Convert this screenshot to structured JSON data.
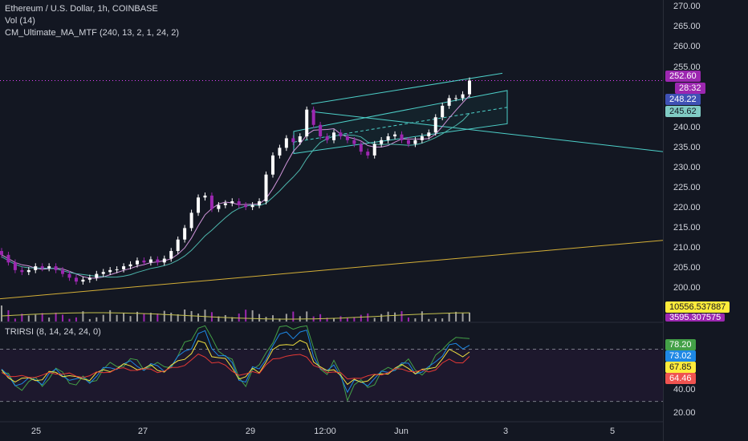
{
  "header": {
    "symbol_line": "Ethereum / U.S. Dollar, 1h, COINBASE",
    "volume_line": "Vol (14)",
    "ma_line": "CM_Ultimate_MA_MTF (240, 13, 2, 1, 24, 2)",
    "rsi_line": "TRIRSI (8, 14, 24, 24, 0)"
  },
  "colors": {
    "background": "#131722",
    "up_candle": "#ffffff",
    "down_candle": "#9c27b0",
    "ma_fast": "#4db6ac",
    "ma_slow": "#c6c24f",
    "long_trend": "#d4af37",
    "channel": "#4dd0c9",
    "rsi_fast": "#43a047",
    "rsi_mid": "#1e88e5",
    "rsi_slow": "#f0e040",
    "rsi_red": "#e53935",
    "price_line": "#e040fb"
  },
  "price_axis": {
    "ticks": [
      "270.00",
      "265.00",
      "260.00",
      "255.00",
      "240.00",
      "235.00",
      "230.00",
      "225.00",
      "220.00",
      "215.00",
      "210.00",
      "205.00",
      "200.00"
    ],
    "rsi_ticks": [
      "40.00",
      "20.00"
    ]
  },
  "badges": {
    "last_price": "252.60",
    "countdown": "28:32",
    "ma_value_1": "248.22",
    "ma_value_2": "245.62",
    "volume_ma": "10556.537887",
    "volume": "3595.307575",
    "rsi_1": "78.20",
    "rsi_2": "73.02",
    "rsi_3": "67.85",
    "rsi_4": "64.46"
  },
  "time_axis": [
    "25",
    "27",
    "29",
    "12:00",
    "Jun",
    "3",
    "5"
  ],
  "chart_data": [
    {
      "type": "candlestick",
      "title": "Ethereum / U.S. Dollar, 1h, COINBASE",
      "ylim": [
        195,
        272
      ],
      "x_labels": [
        "25",
        "27",
        "29",
        "12:00",
        "Jun",
        "3",
        "5"
      ],
      "close_path_points": [
        [
          0,
          207
        ],
        [
          2,
          205
        ],
        [
          4,
          203
        ],
        [
          6,
          202.5
        ],
        [
          8,
          203
        ],
        [
          10,
          204
        ],
        [
          12,
          203.5
        ],
        [
          14,
          204
        ],
        [
          16,
          203
        ],
        [
          18,
          202
        ],
        [
          20,
          201
        ],
        [
          22,
          200
        ],
        [
          24,
          200.5
        ],
        [
          26,
          201
        ],
        [
          28,
          202
        ],
        [
          30,
          202.5
        ],
        [
          32,
          203
        ],
        [
          34,
          203.2
        ],
        [
          36,
          204
        ],
        [
          38,
          204.5
        ],
        [
          40,
          205.5
        ],
        [
          42,
          205
        ],
        [
          44,
          205.8
        ],
        [
          46,
          205
        ],
        [
          48,
          206
        ],
        [
          50,
          208
        ],
        [
          52,
          211
        ],
        [
          54,
          214
        ],
        [
          56,
          218
        ],
        [
          58,
          222
        ],
        [
          60,
          222.5
        ],
        [
          62,
          219
        ],
        [
          64,
          220
        ],
        [
          66,
          220.5
        ],
        [
          68,
          221
        ],
        [
          70,
          220
        ],
        [
          72,
          219.5
        ],
        [
          74,
          220
        ],
        [
          76,
          221
        ],
        [
          78,
          228
        ],
        [
          80,
          233
        ],
        [
          82,
          235
        ],
        [
          84,
          237.5
        ],
        [
          86,
          236.5
        ],
        [
          88,
          238
        ],
        [
          90,
          245
        ],
        [
          92,
          241
        ],
        [
          94,
          238
        ],
        [
          96,
          237
        ],
        [
          98,
          239
        ],
        [
          100,
          238
        ],
        [
          102,
          237
        ],
        [
          104,
          236
        ],
        [
          106,
          234
        ],
        [
          108,
          233
        ],
        [
          110,
          236
        ],
        [
          112,
          237
        ],
        [
          114,
          238
        ],
        [
          116,
          238.5
        ],
        [
          118,
          237
        ],
        [
          120,
          236
        ],
        [
          122,
          237
        ],
        [
          124,
          238
        ],
        [
          126,
          239
        ],
        [
          128,
          243
        ],
        [
          130,
          246
        ],
        [
          132,
          248
        ],
        [
          134,
          248
        ],
        [
          136,
          249
        ],
        [
          138,
          252.6
        ]
      ],
      "volume": {
        "series_name": "Vol (14)",
        "last_value": 3595.307575,
        "ma_value": 10556.537887
      },
      "moving_averages": [
        {
          "name": "CM_Ultimate_MA_MTF",
          "last_value": 248.22
        },
        {
          "name": "CM_Ultimate_MA_MTF",
          "last_value": 245.62
        }
      ],
      "last_price": 252.6
    },
    {
      "type": "line",
      "title": "TRIRSI (8, 14, 24, 24, 0)",
      "ylim": [
        15,
        90
      ],
      "series": [
        {
          "name": "",
          "last_value": 78.2
        },
        {
          "name": "",
          "last_value": 73.02
        },
        {
          "name": "",
          "last_value": 67.85
        },
        {
          "name": "",
          "last_value": 64.46
        }
      ],
      "levels": [
        70,
        30
      ]
    }
  ]
}
